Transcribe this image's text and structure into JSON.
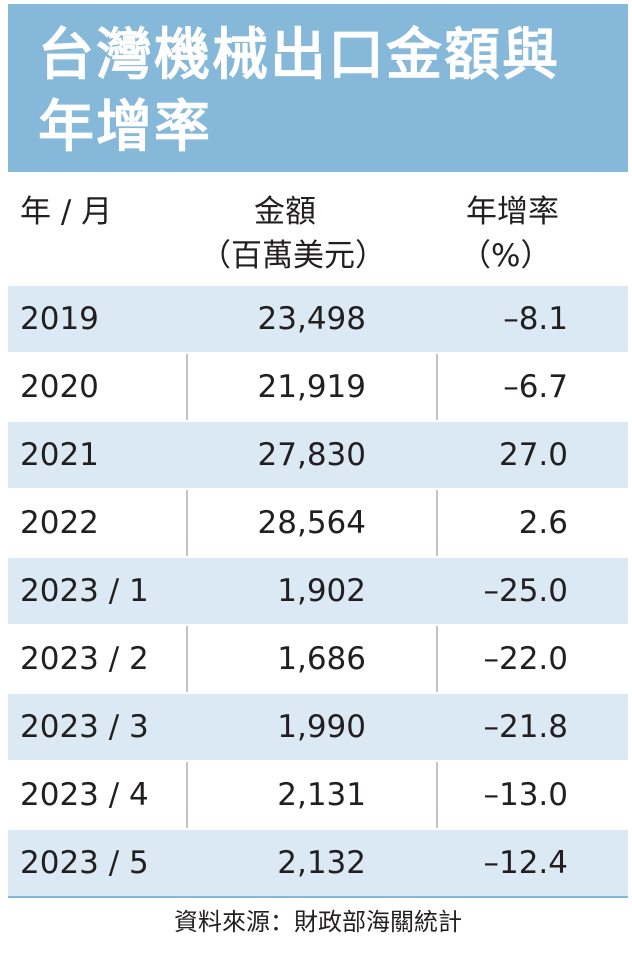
{
  "title": {
    "line1": "台灣機械出口金額與",
    "line2": "年增率"
  },
  "headers": {
    "period": "年 / 月",
    "amount_line1": "金額",
    "amount_line2": "（百萬美元）",
    "rate_line1": "年增率",
    "rate_line2": "（%）"
  },
  "rows": [
    {
      "period": "2019",
      "amount": "23,498",
      "rate": "–8.1"
    },
    {
      "period": "2020",
      "amount": "21,919",
      "rate": "–6.7"
    },
    {
      "period": "2021",
      "amount": "27,830",
      "rate": "27.0"
    },
    {
      "period": "2022",
      "amount": "28,564",
      "rate": "2.6"
    },
    {
      "period": "2023 / 1",
      "amount": "1,902",
      "rate": "–25.0"
    },
    {
      "period": "2023 / 2",
      "amount": "1,686",
      "rate": "–22.0"
    },
    {
      "period": "2023 / 3",
      "amount": "1,990",
      "rate": "–21.8"
    },
    {
      "period": "2023 / 4",
      "amount": "2,131",
      "rate": "–13.0"
    },
    {
      "period": "2023 / 5",
      "amount": "2,132",
      "rate": "–12.4"
    }
  ],
  "source": "資料來源：財政部海關統計",
  "colors": {
    "title_background": "#86b9d9",
    "row_shade": "#dbe9f4",
    "text": "#231f20"
  }
}
